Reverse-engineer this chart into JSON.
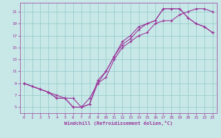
{
  "xlabel": "Windchill (Refroidissement éolien,°C)",
  "bg_color": "#c8e8e8",
  "line_color": "#993399",
  "grid_color": "#99cccc",
  "xlim": [
    -0.5,
    23.5
  ],
  "ylim": [
    4.0,
    22.5
  ],
  "xticks": [
    0,
    1,
    2,
    3,
    4,
    5,
    6,
    7,
    8,
    9,
    10,
    11,
    12,
    13,
    14,
    15,
    16,
    17,
    18,
    19,
    20,
    21,
    22,
    23
  ],
  "yticks": [
    5,
    7,
    9,
    11,
    13,
    15,
    17,
    19,
    21
  ],
  "line1_x": [
    0,
    1,
    2,
    3,
    4,
    5,
    6,
    7,
    8,
    9,
    10,
    11,
    12,
    13,
    14,
    15,
    16,
    17,
    18,
    19,
    20,
    21,
    22,
    23
  ],
  "line1_y": [
    9,
    8.5,
    8,
    7.5,
    7,
    6.5,
    5,
    5,
    5.5,
    9,
    10,
    13,
    15,
    16,
    17,
    17.5,
    19,
    19.5,
    19.5,
    20.5,
    21,
    21.5,
    21.5,
    21
  ],
  "line2_x": [
    0,
    1,
    2,
    3,
    4,
    5,
    6,
    7,
    8,
    9,
    10,
    11,
    12,
    13,
    14,
    15,
    16,
    17,
    18,
    19,
    20,
    21,
    22,
    23
  ],
  "line2_y": [
    9,
    8.5,
    8,
    7.5,
    6.5,
    6.5,
    5,
    5,
    6.5,
    9,
    11,
    13.5,
    15.5,
    16.5,
    18,
    19,
    19.5,
    21.5,
    21.5,
    21.5,
    20,
    19,
    18.5,
    17.5
  ],
  "line3_x": [
    0,
    2,
    3,
    4,
    5,
    6,
    7,
    8,
    9,
    10,
    11,
    12,
    13,
    14,
    15,
    16,
    17,
    18,
    19,
    20,
    21,
    22,
    23
  ],
  "line3_y": [
    9,
    8,
    7.5,
    6.5,
    6.5,
    6.5,
    5,
    5.5,
    9.5,
    11,
    13.5,
    16,
    17,
    18.5,
    19,
    19.5,
    21.5,
    21.5,
    21.5,
    20,
    19,
    18.5,
    17.5
  ]
}
